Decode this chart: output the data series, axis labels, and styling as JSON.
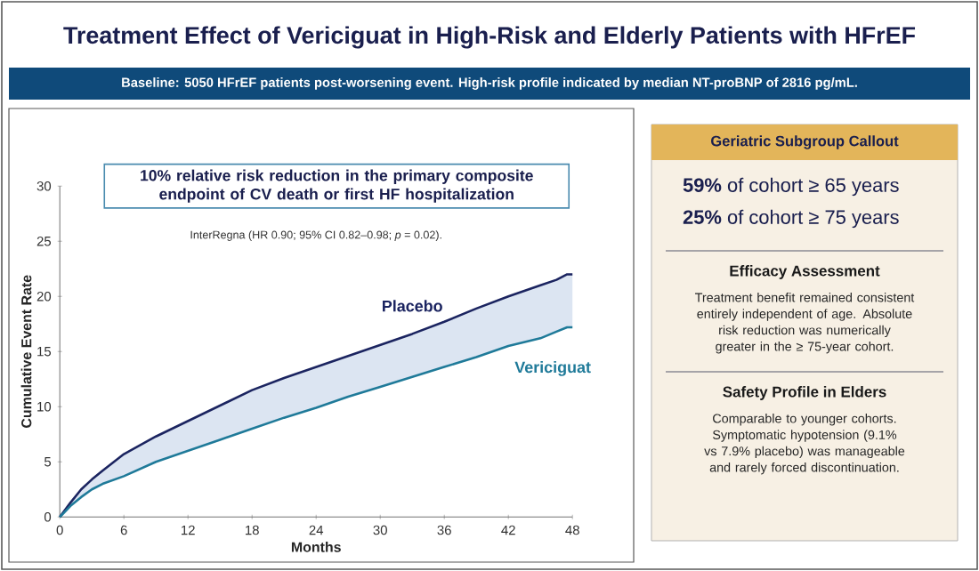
{
  "chart_data": [
    {
      "type": "line",
      "title": "Treatment Effect of Vericiguat in High-Risk and Elderly Patients with HFrEF",
      "subtitle": "Baseline: 5050 HFrEF patients post-worsening event. High-risk profile indicated by median NT-proBNP of 2816 pg/mL.",
      "xlabel": "Months",
      "ylabel": "Cumulative Event Rate",
      "x": [
        0,
        1,
        2,
        3,
        4,
        6,
        9,
        12,
        15,
        18,
        21,
        24,
        27,
        30,
        33,
        36,
        39,
        42,
        45,
        46.5,
        47.5,
        48
      ],
      "series": [
        {
          "name": "Placebo",
          "color": "#1b2460",
          "values": [
            0,
            1.3,
            2.5,
            3.4,
            4.2,
            5.7,
            7.3,
            8.7,
            10.1,
            11.5,
            12.6,
            13.6,
            14.6,
            15.6,
            16.6,
            17.7,
            18.9,
            20.0,
            21.0,
            21.5,
            22.0,
            22.0
          ],
          "lower": [
            0,
            1.0,
            1.8,
            2.5,
            3.0,
            3.7,
            5.0,
            6.0,
            7.0,
            8.0,
            9.0,
            9.9,
            10.9,
            11.8,
            12.7,
            13.6,
            14.5,
            15.5,
            16.2,
            16.8,
            17.2,
            17.2
          ],
          "upper": [
            0,
            1.3,
            2.5,
            3.4,
            4.2,
            5.7,
            7.3,
            8.7,
            10.1,
            11.5,
            12.6,
            13.6,
            14.6,
            15.6,
            16.6,
            17.7,
            18.9,
            20.0,
            21.0,
            21.5,
            22.0,
            22.0
          ]
        },
        {
          "name": "Vericiguat",
          "color": "#1f7a99",
          "values": [
            0,
            1.0,
            1.8,
            2.5,
            3.0,
            3.7,
            5.0,
            6.0,
            7.0,
            8.0,
            9.0,
            9.9,
            10.9,
            11.8,
            12.7,
            13.6,
            14.5,
            15.5,
            16.2,
            16.8,
            17.2,
            17.2
          ]
        }
      ],
      "xlim": [
        0,
        48
      ],
      "xticks": [
        0,
        6,
        12,
        18,
        24,
        30,
        36,
        42,
        48
      ],
      "ylim": [
        0,
        30
      ],
      "yticks": [
        0,
        5,
        10,
        15,
        20,
        25,
        30
      ],
      "grid": false,
      "annotations": [
        "10% relative risk reduction in the primary composite endpoint of CV death or first HF hospitalization",
        "InterRegna (HR 0.90; 95% CI 0.82–0.98; *p* = 0.02)."
      ]
    },
    {
      "type": "other",
      "title": "Geriatric Subgroup Callout",
      "annotations": [
        "**59%** of cohort ≥ 65 years",
        "**25%** of cohort ≥ 75 years",
        "Efficacy Assessment",
        "Treatment benefit remained consistent entirely independent of age. Absolute risk reduction was numerically greater in the ≥ 75-year cohort.",
        "Safety Profile in Elders",
        "Comparable to younger cohorts. Symptomatic hypotension (9.1% vs 7.9% placebo) was manageable and rarely forced discontinuation."
      ]
    }
  ]
}
